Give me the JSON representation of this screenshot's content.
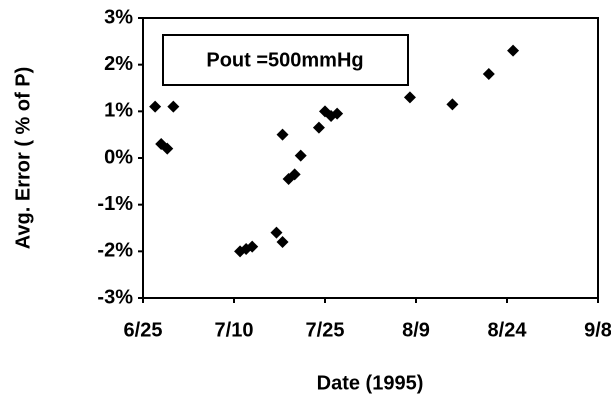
{
  "chart_data": {
    "type": "scatter",
    "y_label": "Avg. Error ( % of P)",
    "x_label": "Date (1995)",
    "annotation": "Pout =500mmHg",
    "color": "#000000",
    "x": [
      "6/27",
      "6/28",
      "6/29",
      "6/30",
      "7/11",
      "7/12",
      "7/13",
      "7/17",
      "7/18",
      "7/18",
      "7/19",
      "7/20",
      "7/21",
      "7/24",
      "7/25",
      "7/26",
      "7/27",
      "8/8",
      "8/15",
      "8/21",
      "8/25"
    ],
    "values": [
      1.1,
      0.3,
      0.2,
      1.1,
      -2.0,
      -1.95,
      -1.9,
      -1.6,
      -1.8,
      0.5,
      -0.45,
      -0.35,
      0.05,
      0.65,
      1.0,
      0.9,
      0.95,
      1.3,
      1.15,
      1.8,
      2.3
    ],
    "xlim": [
      "6/25",
      "9/8"
    ],
    "xticks": [
      "6/25",
      "7/10",
      "7/25",
      "8/9",
      "8/24",
      "9/8"
    ],
    "ylim": [
      -3,
      3
    ],
    "yticks": [
      {
        "value": -3,
        "label": "-3%"
      },
      {
        "value": -2,
        "label": "-2%"
      },
      {
        "value": -1,
        "label": "-1%"
      },
      {
        "value": 0,
        "label": "0%"
      },
      {
        "value": 1,
        "label": "1%"
      },
      {
        "value": 2,
        "label": "2%"
      },
      {
        "value": 3,
        "label": "3%"
      }
    ],
    "grid": false
  }
}
